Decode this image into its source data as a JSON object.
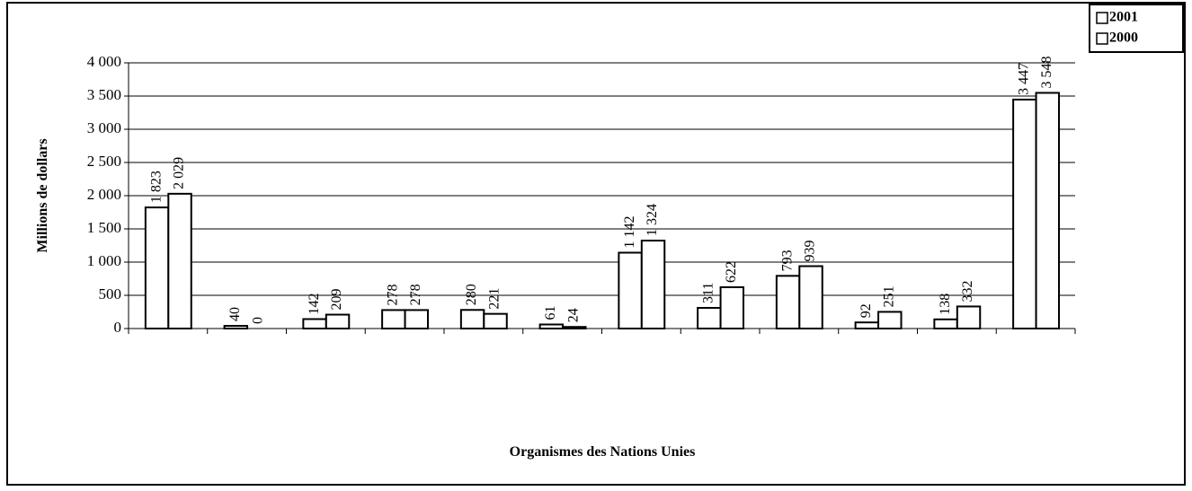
{
  "chart_data": {
    "type": "bar",
    "y_label": "Millions de dollars",
    "x_label": "Organismes des Nations Unies",
    "categories": [
      null,
      null,
      null,
      null,
      null,
      null,
      null,
      null,
      null,
      null,
      null,
      null
    ],
    "series": [
      {
        "name": "2001",
        "color": "#ffffff",
        "values": [
          1823,
          40,
          142,
          278,
          280,
          61,
          1142,
          311,
          793,
          92,
          138,
          3447
        ],
        "value_labels": [
          "1 823",
          "40",
          "142",
          "278",
          "280",
          "61",
          "1 142",
          "311",
          "793",
          "92",
          "138",
          "3 447"
        ]
      },
      {
        "name": "2000",
        "color": "#ffffff",
        "values": [
          2029,
          0,
          209,
          278,
          221,
          24,
          1324,
          622,
          939,
          251,
          332,
          3548
        ],
        "value_labels": [
          "2 029",
          "0",
          "209",
          "278",
          "221",
          "24",
          "1 324",
          "622",
          "939",
          "251",
          "332",
          "3 548"
        ]
      }
    ],
    "ylim": [
      0,
      4000
    ],
    "yticks": [
      0,
      500,
      {
        "value": 1000,
        "label": "1 000"
      },
      {
        "value": 1500,
        "label": "1 500"
      },
      {
        "value": 2000,
        "label": "2 000"
      },
      {
        "value": 2500,
        "label": "2 500"
      },
      {
        "value": 3000,
        "label": "3 000"
      },
      {
        "value": 3500,
        "label": "3 500"
      },
      {
        "value": 4000,
        "label": "4 000"
      }
    ],
    "grid": true,
    "legend": "top-right"
  }
}
